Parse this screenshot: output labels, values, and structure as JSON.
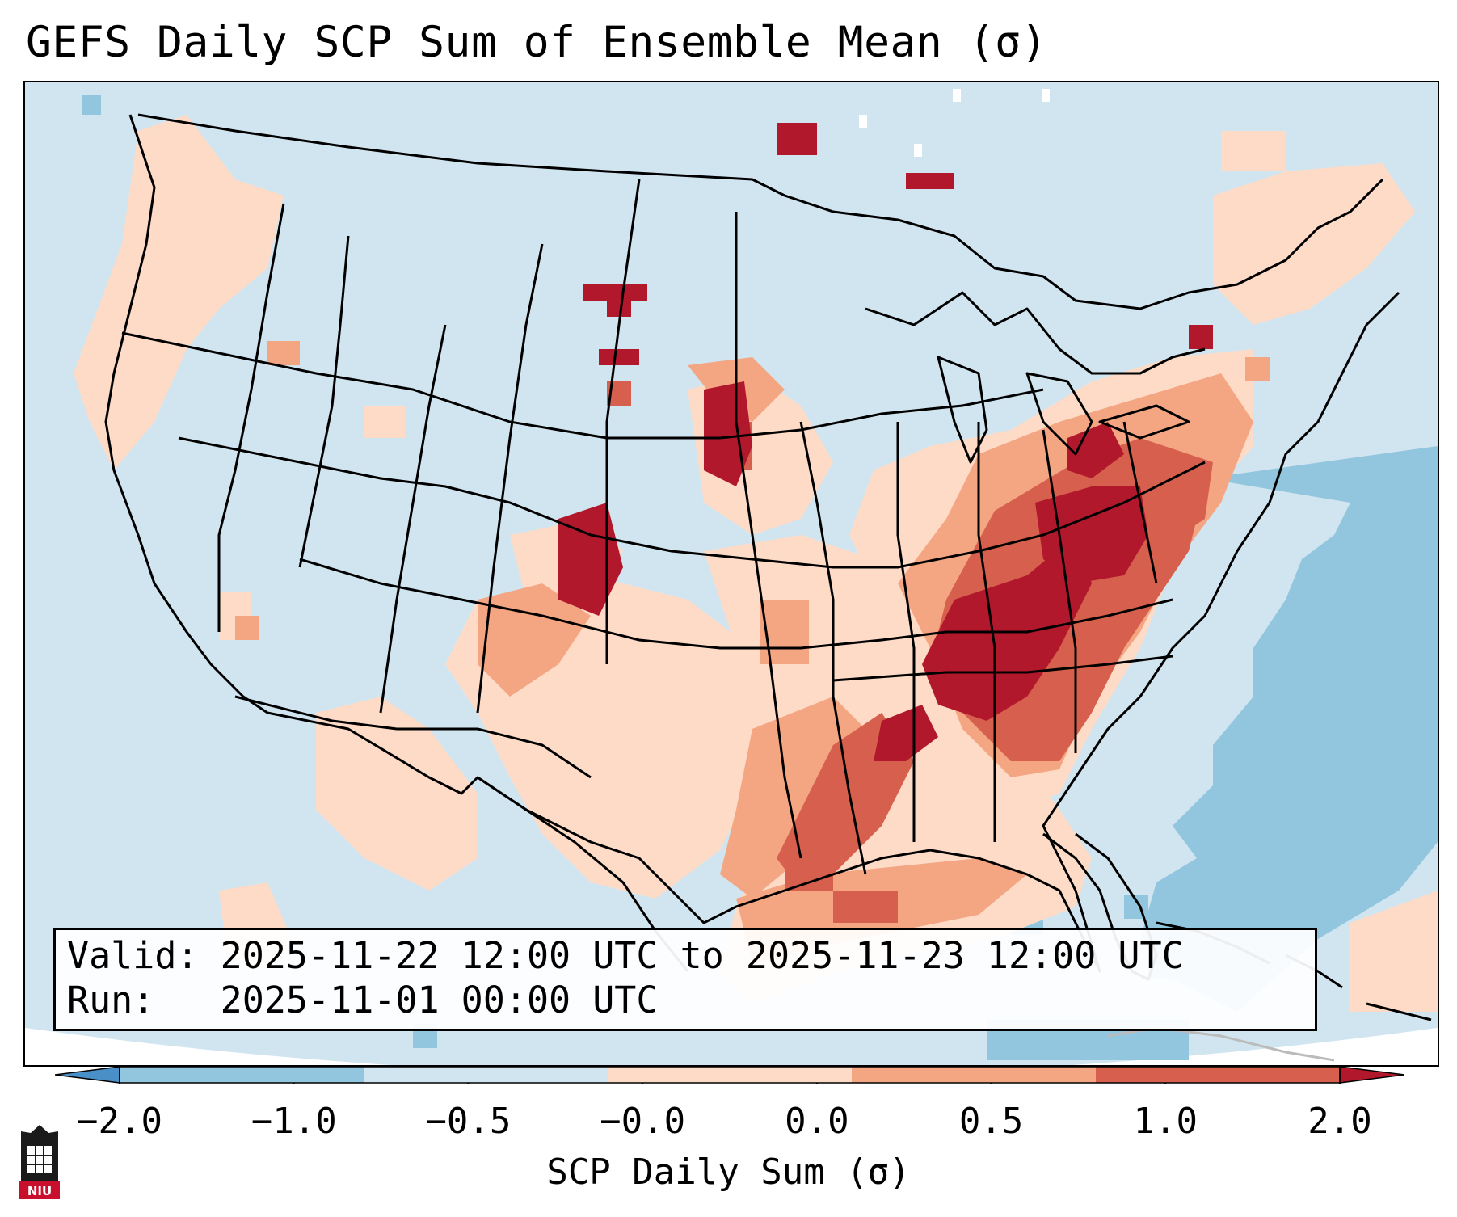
{
  "title": "GEFS Daily SCP Sum of Ensemble Mean (σ)",
  "info": {
    "valid": "Valid: 2025-11-22 12:00 UTC to 2025-11-23 12:00 UTC",
    "run": "Run:   2025-11-01 00:00 UTC"
  },
  "colorbar": {
    "label": "SCP Daily Sum (σ)",
    "ticks": [
      "−2.0",
      "−1.0",
      "−0.5",
      "−0.0",
      "0.0",
      "0.5",
      "1.0",
      "2.0"
    ],
    "colors": [
      "#4a90c8",
      "#92c5de",
      "#d1e5f0",
      "#f7f7f7",
      "#fddbc7",
      "#f4a582",
      "#d6604d",
      "#b2182b"
    ],
    "extend": "both"
  },
  "legend_bins": [
    {
      "range": "< -1.0",
      "color": "#4a90c8"
    },
    {
      "range": "-1.0 to -0.5",
      "color": "#92c5de"
    },
    {
      "range": "-0.5 to 0.0",
      "color": "#d1e5f0"
    },
    {
      "range": "0.0 to 0.5",
      "color": "#fddbc7"
    },
    {
      "range": "0.5 to 1.0",
      "color": "#f4a582"
    },
    {
      "range": "1.0 to 2.0",
      "color": "#d6604d"
    },
    {
      "range": "> 2.0",
      "color": "#b2182b"
    }
  ],
  "map": {
    "region": "Contiguous United States",
    "highlights": [
      {
        "area": "Tennessee Valley / Kentucky / Ohio Valley",
        "level": "> 2.0"
      },
      {
        "area": "Ohio / Indiana / Michigan",
        "level": "> 2.0"
      },
      {
        "area": "Mississippi / Louisiana / Alabama",
        "level": "1.0 to 2.0"
      },
      {
        "area": "Eastern South Dakota",
        "level": "> 2.0"
      },
      {
        "area": "Northeastern Colorado",
        "level": "> 2.0"
      },
      {
        "area": "Northwestern Gulf of Mexico",
        "level": "0.5 to 1.0"
      },
      {
        "area": "Western Atlantic",
        "level": "-1.0 to -0.5"
      }
    ]
  },
  "logo": {
    "text": "NIU"
  }
}
